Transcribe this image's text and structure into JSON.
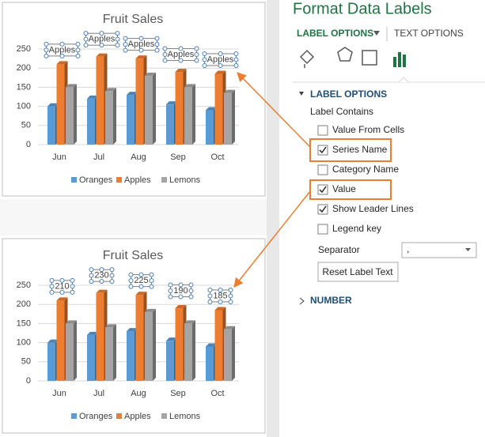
{
  "chart_data": [
    {
      "type": "bar",
      "title": "Fruit Sales",
      "categories": [
        "Jun",
        "Jul",
        "Aug",
        "Sep",
        "Oct"
      ],
      "series": [
        {
          "name": "Oranges",
          "color": "#5b9bd5",
          "values": [
            100,
            120,
            130,
            105,
            90
          ]
        },
        {
          "name": "Apples",
          "color": "#ed7d31",
          "values": [
            210,
            230,
            225,
            190,
            185
          ],
          "data_labels": "name"
        },
        {
          "name": "Lemons",
          "color": "#a5a5a5",
          "values": [
            150,
            140,
            180,
            150,
            135
          ]
        }
      ],
      "ylim": [
        0,
        250
      ],
      "yticks": [
        0,
        50,
        100,
        150,
        200,
        250
      ],
      "grid": true,
      "legend": "bottom"
    },
    {
      "type": "bar",
      "title": "Fruit Sales",
      "categories": [
        "Jun",
        "Jul",
        "Aug",
        "Sep",
        "Oct"
      ],
      "series": [
        {
          "name": "Oranges",
          "color": "#5b9bd5",
          "values": [
            100,
            120,
            130,
            105,
            90
          ]
        },
        {
          "name": "Apples",
          "color": "#ed7d31",
          "values": [
            210,
            230,
            225,
            190,
            185
          ],
          "data_labels": "value"
        },
        {
          "name": "Lemons",
          "color": "#a5a5a5",
          "values": [
            150,
            140,
            180,
            150,
            135
          ]
        }
      ],
      "ylim": [
        0,
        250
      ],
      "yticks": [
        0,
        50,
        100,
        150,
        200,
        250
      ],
      "grid": true,
      "legend": "bottom"
    }
  ],
  "panel": {
    "title": "Format Data Labels",
    "tabs": [
      "LABEL OPTIONS",
      "TEXT OPTIONS"
    ],
    "section": "LABEL OPTIONS",
    "label_contains": "Label Contains",
    "options": [
      {
        "label": "Value From Cells",
        "checked": false
      },
      {
        "label": "Series Name",
        "checked": true
      },
      {
        "label": "Category Name",
        "checked": false
      },
      {
        "label": "Value",
        "checked": true
      },
      {
        "label": "Show Leader Lines",
        "checked": true
      },
      {
        "label": "Legend key",
        "checked": false
      }
    ],
    "separator_label": "Separator",
    "separator_value": ",",
    "button": "Reset Label Text",
    "collapsed_section": "NUMBER"
  }
}
